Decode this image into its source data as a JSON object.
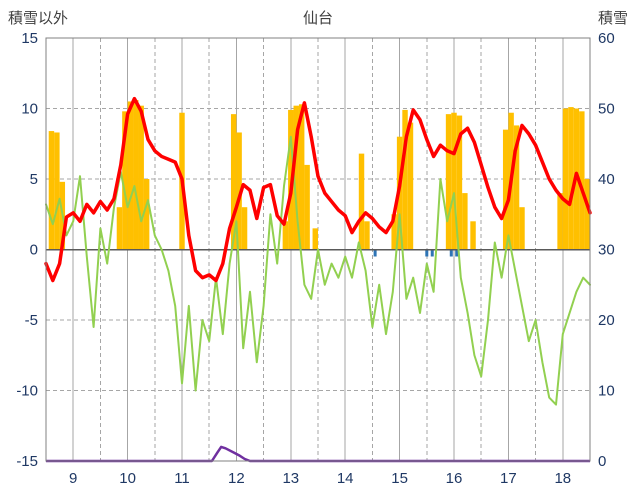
{
  "chart_data": {
    "type": "line",
    "subtype": "composite weather chart (lines + bars)",
    "title": "仙台",
    "left_axis": {
      "label": "積雪以外",
      "min": -15,
      "max": 15,
      "ticks": [
        15,
        10,
        5,
        0,
        -5,
        -10,
        -15
      ]
    },
    "right_axis": {
      "label": "積雪",
      "min": 0,
      "max": 60,
      "ticks": [
        60,
        50,
        40,
        30,
        20,
        10,
        0
      ]
    },
    "x_axis": {
      "min": 8.5,
      "max": 18.5,
      "labels": [
        9,
        10,
        11,
        12,
        13,
        14,
        15,
        16,
        17,
        18
      ]
    },
    "grid": {
      "vertical_solid_at": [
        9,
        10,
        11,
        12,
        13,
        14,
        15,
        16,
        17,
        18
      ],
      "vertical_dashed_at": [
        9.5,
        10.5,
        11.5,
        12.5,
        13.5,
        14.5,
        15.5,
        16.5,
        17.5
      ],
      "horizontal_dashed_at": [
        10,
        5,
        -5,
        -10
      ],
      "zero_line": 0
    },
    "colors": {
      "red_line": "#FF0000",
      "green_line": "#92D050",
      "orange_bars": "#FFC000",
      "purple_line": "#7030A0",
      "blue_ticks": "#2E74B5",
      "grid": "#A6A6A6",
      "frame": "#808080",
      "zero_axis": "#595959",
      "tick_text": "#1F3864",
      "label_text": "#404040"
    },
    "series": {
      "x_start": 8.5,
      "x_step": 0.125,
      "red_line_left_axis": [
        -1.0,
        -2.2,
        -1.0,
        2.3,
        2.6,
        2.0,
        3.2,
        2.6,
        3.4,
        2.8,
        3.6,
        6.0,
        9.6,
        10.7,
        9.8,
        7.8,
        7.0,
        6.6,
        6.4,
        6.2,
        5.0,
        1.0,
        -1.5,
        -2.0,
        -1.8,
        -2.2,
        -1.0,
        1.5,
        3.0,
        4.6,
        4.2,
        2.2,
        4.4,
        4.6,
        2.4,
        1.8,
        4.0,
        8.5,
        10.4,
        8.0,
        5.2,
        4.0,
        3.4,
        2.8,
        2.4,
        1.2,
        2.0,
        2.6,
        2.2,
        1.6,
        1.2,
        2.0,
        4.5,
        8.0,
        9.9,
        9.2,
        7.8,
        6.6,
        7.4,
        7.0,
        6.8,
        8.2,
        8.6,
        7.6,
        6.0,
        4.4,
        3.0,
        2.2,
        3.5,
        7.0,
        8.8,
        8.2,
        7.4,
        6.2,
        5.0,
        4.2,
        3.6,
        3.2,
        5.4,
        4.0,
        2.6
      ],
      "green_line_left_axis": [
        3.2,
        1.8,
        3.6,
        1.0,
        2.0,
        5.2,
        -0.5,
        -5.5,
        1.5,
        -1.0,
        3.0,
        5.5,
        3.0,
        4.5,
        2.0,
        3.5,
        1.0,
        0.0,
        -1.5,
        -4.0,
        -9.5,
        -4.0,
        -10.0,
        -5.0,
        -6.5,
        -2.0,
        -6.0,
        -1.0,
        2.0,
        -7.0,
        -3.0,
        -8.0,
        -4.0,
        2.5,
        -1.0,
        4.5,
        8.0,
        2.0,
        -2.5,
        -3.5,
        0.0,
        -2.5,
        -1.0,
        -2.0,
        -0.5,
        -2.0,
        0.5,
        -1.5,
        -5.5,
        -2.5,
        -6.0,
        -3.0,
        2.5,
        -3.5,
        -2.0,
        -4.5,
        -1.0,
        -3.0,
        5.0,
        2.0,
        4.0,
        -2.0,
        -4.5,
        -7.5,
        -9.0,
        -5.0,
        0.5,
        -2.0,
        1.0,
        -1.5,
        -4.0,
        -6.5,
        -5.0,
        -8.0,
        -10.5,
        -11.0,
        -6.0,
        -4.5,
        -3.0,
        -2.0,
        -2.5
      ],
      "orange_bars_left_axis": [
        [
          8.6,
          8.4
        ],
        [
          8.7,
          8.3
        ],
        [
          8.8,
          4.8
        ],
        [
          9.85,
          3.0
        ],
        [
          9.95,
          9.8
        ],
        [
          10.05,
          10.5
        ],
        [
          10.15,
          10.6
        ],
        [
          10.25,
          10.2
        ],
        [
          10.35,
          5.0
        ],
        [
          11.0,
          9.7
        ],
        [
          11.95,
          9.6
        ],
        [
          12.05,
          8.3
        ],
        [
          12.15,
          3.0
        ],
        [
          12.9,
          2.0
        ],
        [
          13.0,
          9.9
        ],
        [
          13.1,
          10.2
        ],
        [
          13.2,
          10.3
        ],
        [
          13.3,
          6.0
        ],
        [
          13.45,
          1.5
        ],
        [
          14.3,
          6.8
        ],
        [
          14.4,
          2.0
        ],
        [
          14.9,
          2.5
        ],
        [
          15.0,
          8.0
        ],
        [
          15.1,
          9.9
        ],
        [
          15.2,
          9.0
        ],
        [
          15.9,
          9.6
        ],
        [
          16.0,
          9.7
        ],
        [
          16.1,
          9.5
        ],
        [
          16.2,
          4.0
        ],
        [
          16.35,
          2.0
        ],
        [
          16.95,
          8.5
        ],
        [
          17.05,
          9.7
        ],
        [
          17.15,
          8.8
        ],
        [
          17.25,
          3.0
        ],
        [
          17.95,
          4.0
        ],
        [
          18.05,
          10.0
        ],
        [
          18.15,
          10.1
        ],
        [
          18.25,
          10.0
        ],
        [
          18.35,
          9.8
        ],
        [
          18.45,
          5.0
        ]
      ],
      "purple_line_right_axis": [
        [
          8.5,
          0
        ],
        [
          11.55,
          0
        ],
        [
          11.65,
          1.2
        ],
        [
          11.72,
          2.0
        ],
        [
          11.8,
          1.8
        ],
        [
          11.95,
          1.2
        ],
        [
          12.05,
          0.8
        ],
        [
          12.15,
          0.3
        ],
        [
          12.25,
          0
        ],
        [
          18.5,
          0
        ]
      ],
      "blue_tick_positions_x": [
        14.55,
        15.5,
        15.6,
        15.95,
        16.05
      ]
    },
    "bar_width_days": 0.1,
    "legend": "none shown"
  }
}
